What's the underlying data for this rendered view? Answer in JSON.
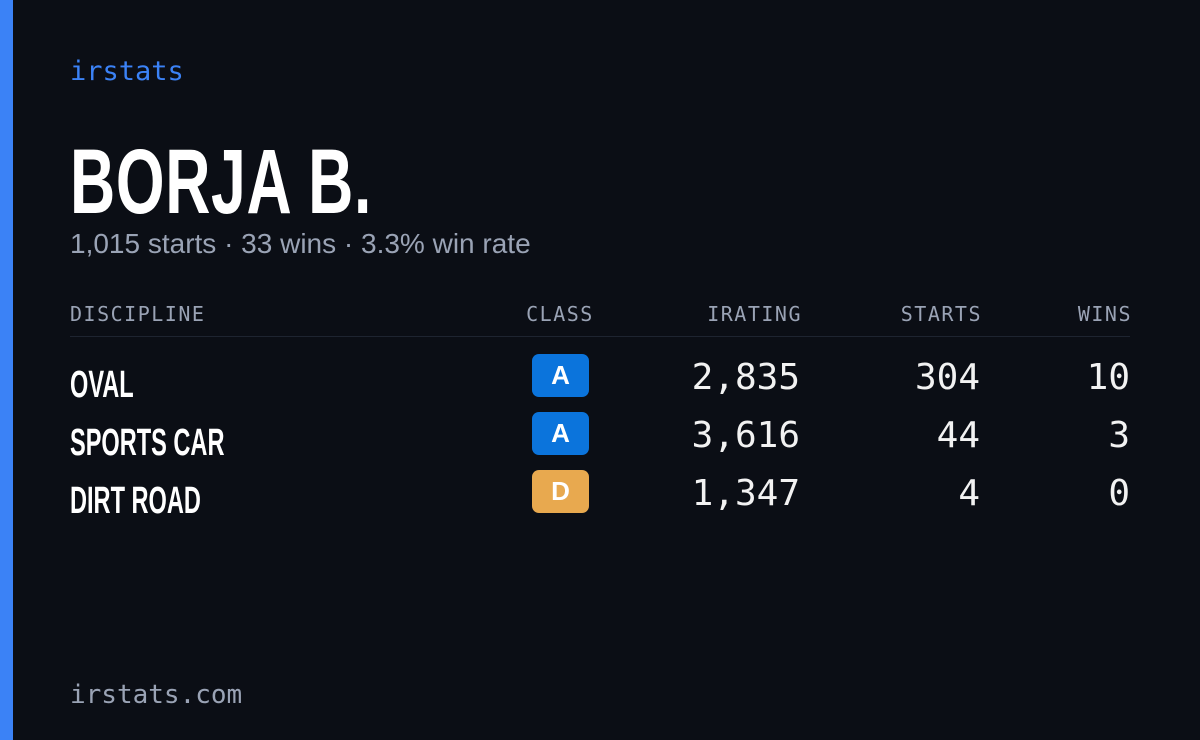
{
  "brand": "irstats",
  "profile": {
    "name": "BORJA B.",
    "summary": "1,015 starts · 33 wins · 3.3% win rate"
  },
  "table": {
    "headers": [
      "DISCIPLINE",
      "CLASS",
      "IRATING",
      "STARTS",
      "WINS"
    ],
    "rows": [
      [
        "OVAL",
        "A",
        "2,835",
        "304",
        "10"
      ],
      [
        "SPORTS CAR",
        "A",
        "3,616",
        "44",
        "3"
      ],
      [
        "DIRT ROAD",
        "D",
        "1,347",
        "4",
        "0"
      ]
    ]
  },
  "footer": "irstats.com"
}
